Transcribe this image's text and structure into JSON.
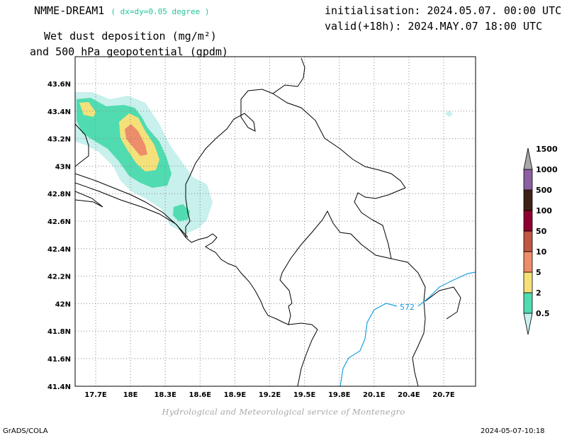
{
  "header": {
    "model": "NMME-DREAM1",
    "resolution": "( dx=dy=0.05 degree )",
    "initialisation": "initialisation: 2024.05.07. 00:00 UTC",
    "valid": "valid(+18h): 2024.MAY.07 18:00 UTC",
    "title_line1": "Wet dust deposition (mg/m²)",
    "title_line2": "and 500 hPa geopotential (gpdm)"
  },
  "map": {
    "lat_ticks": [
      "43.6N",
      "43.4N",
      "43.2N",
      "43N",
      "42.8N",
      "42.6N",
      "42.4N",
      "42.2N",
      "42N",
      "41.8N",
      "41.6N",
      "41.4N"
    ],
    "lon_ticks": [
      "17.7E",
      "18E",
      "18.3E",
      "18.6E",
      "18.9E",
      "19.2E",
      "19.5E",
      "19.8E",
      "20.1E",
      "20.4E",
      "20.7E"
    ],
    "contour_label": "572",
    "contour_color": "#1aa0e0",
    "grid": true
  },
  "colorbar": {
    "labels": [
      "0.5",
      "2",
      "5",
      "10",
      "50",
      "100",
      "500",
      "1000",
      "1500"
    ],
    "colors": [
      "#c8f0ec",
      "#50dcb0",
      "#f5e17a",
      "#ee8d6a",
      "#bf5744",
      "#8f0030",
      "#402016",
      "#8c60a0",
      "#a8a8a8"
    ]
  },
  "footer": {
    "credit": "Hydrological and Meteorological service of Montenegro",
    "software": "GrADS/COLA",
    "timestamp": "2024-05-07-10:18"
  }
}
